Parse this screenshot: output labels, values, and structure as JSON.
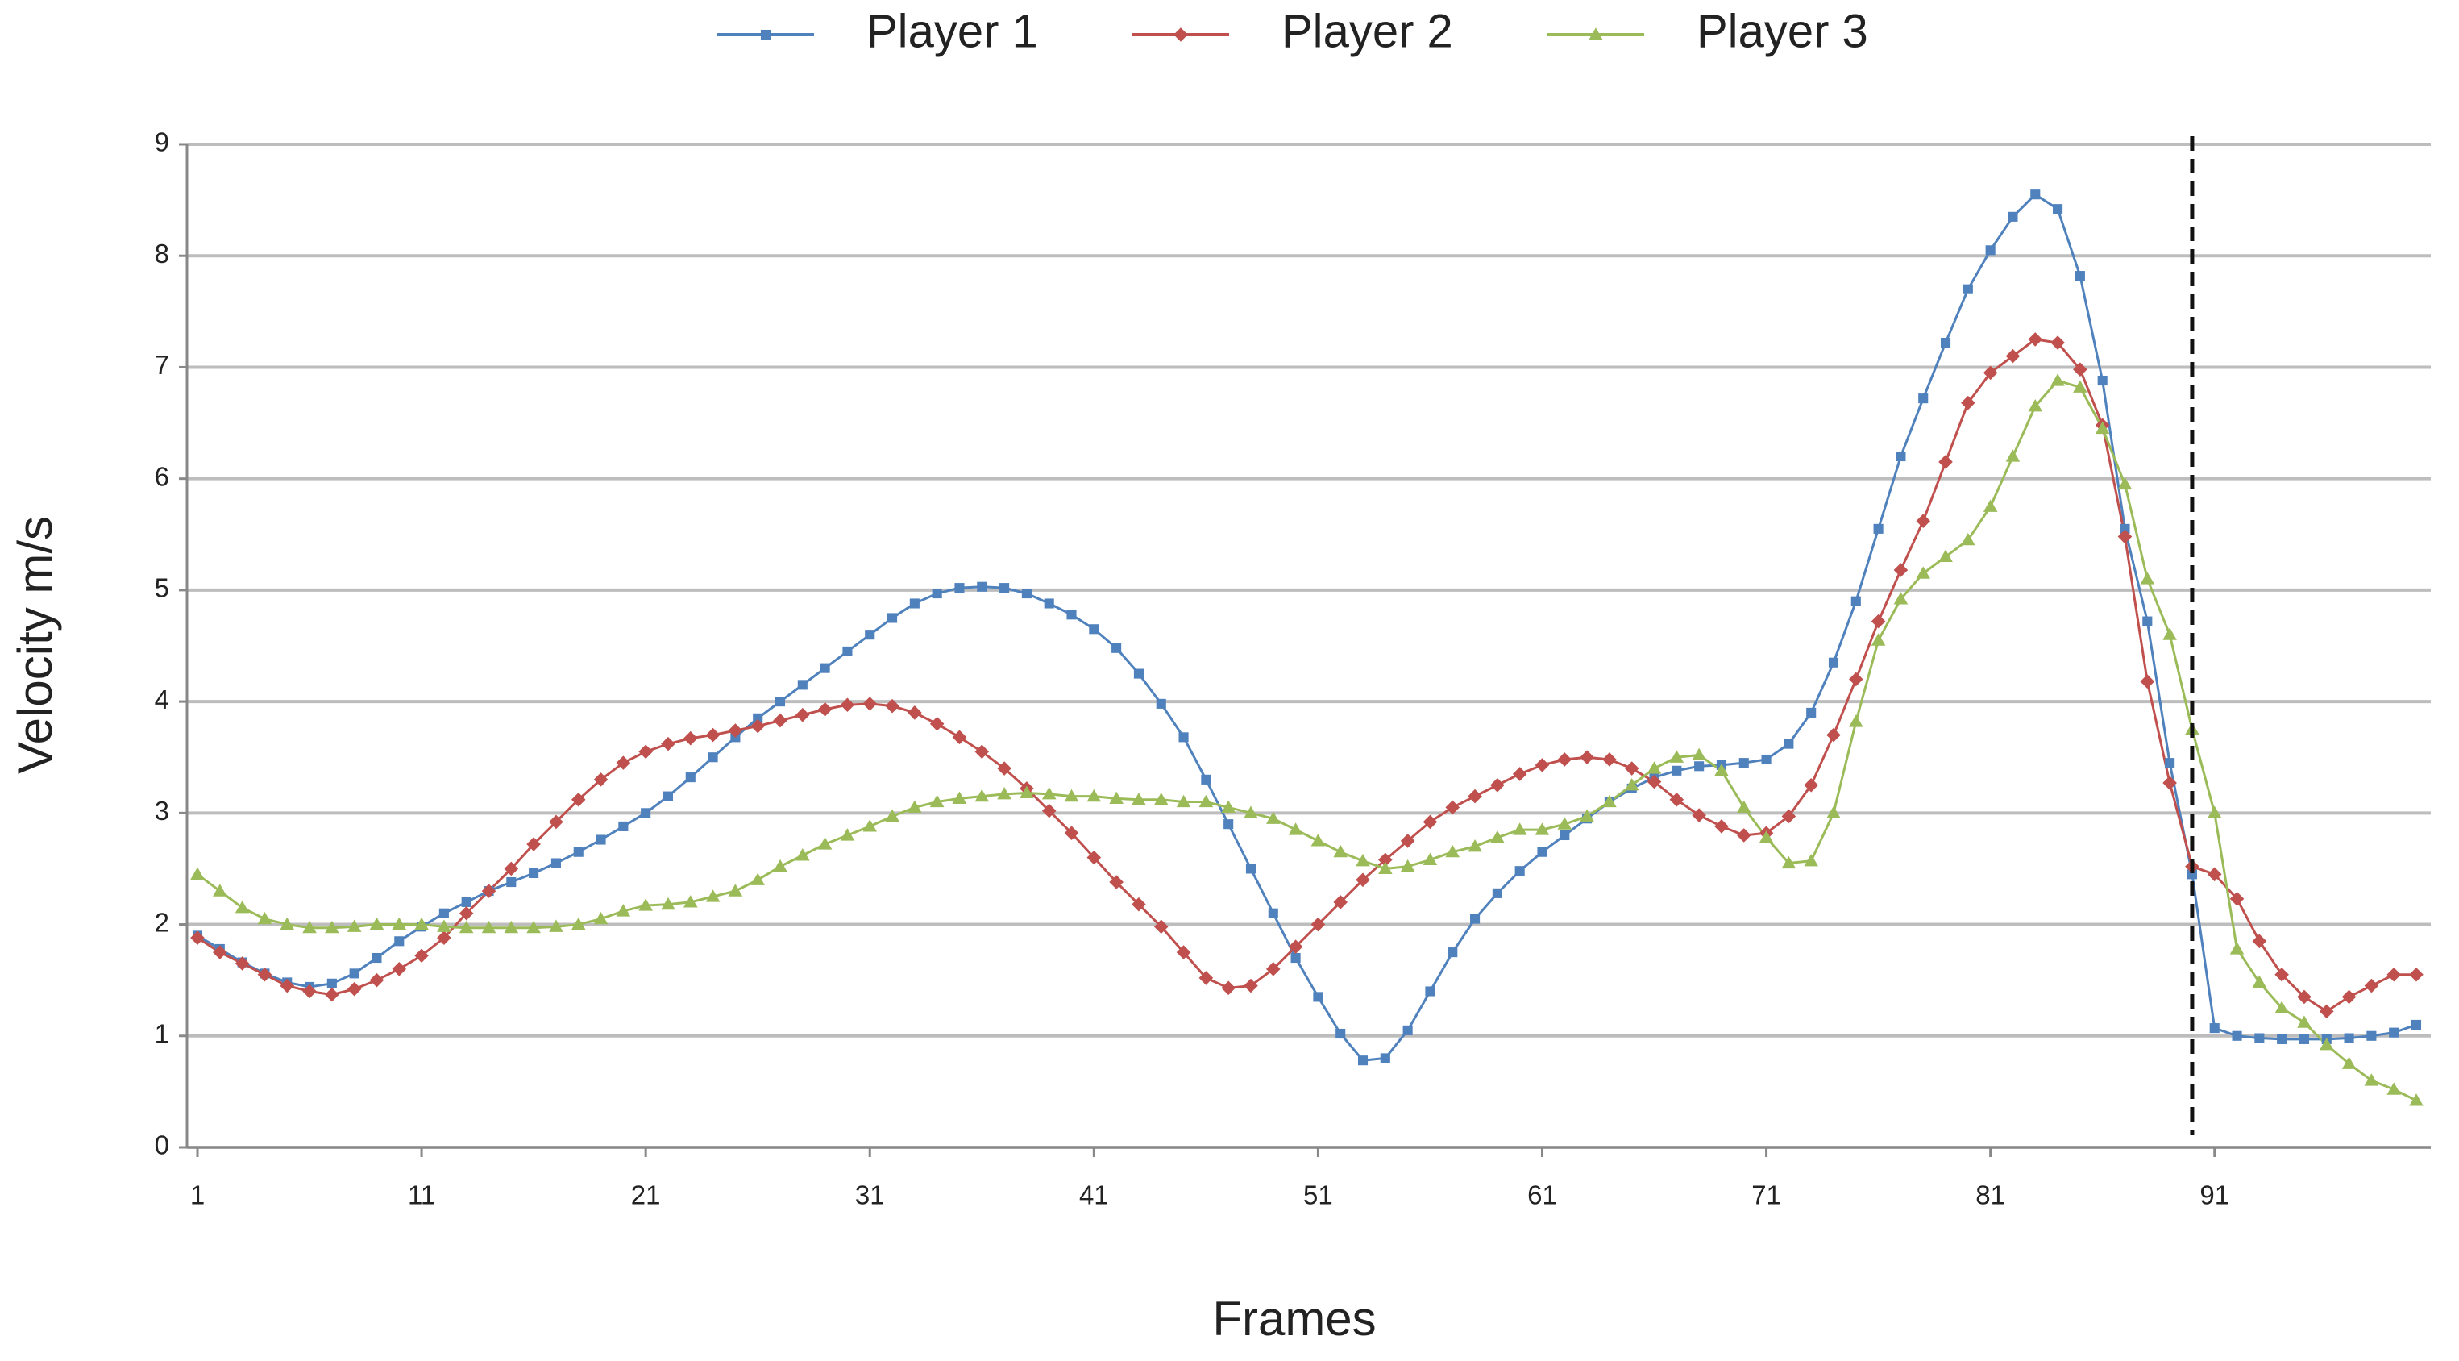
{
  "chart_data": {
    "type": "line",
    "xlabel": "Frames",
    "ylabel": "Velocity m/s",
    "x": [
      1,
      2,
      3,
      4,
      5,
      6,
      7,
      8,
      9,
      10,
      11,
      12,
      13,
      14,
      15,
      16,
      17,
      18,
      19,
      20,
      21,
      22,
      23,
      24,
      25,
      26,
      27,
      28,
      29,
      30,
      31,
      32,
      33,
      34,
      35,
      36,
      37,
      38,
      39,
      40,
      41,
      42,
      43,
      44,
      45,
      46,
      47,
      48,
      49,
      50,
      51,
      52,
      53,
      54,
      55,
      56,
      57,
      58,
      59,
      60,
      61,
      62,
      63,
      64,
      65,
      66,
      67,
      68,
      69,
      70,
      71,
      72,
      73,
      74,
      75,
      76,
      77,
      78,
      79,
      80,
      81,
      82,
      83,
      84,
      85,
      86,
      87,
      88,
      89,
      90,
      91,
      92,
      93,
      94,
      95,
      96,
      97,
      98,
      99,
      100
    ],
    "xlim": [
      1,
      100
    ],
    "xticks": [
      1,
      11,
      21,
      31,
      41,
      51,
      61,
      71,
      81,
      91
    ],
    "ylim": [
      0,
      9
    ],
    "yticks": [
      0,
      1,
      2,
      3,
      4,
      5,
      6,
      7,
      8,
      9
    ],
    "grid": true,
    "legend": "top",
    "reference_x": 90,
    "series": [
      {
        "name": "Player 1",
        "color": "#4f81bd",
        "marker": "square",
        "values": [
          1.9,
          1.78,
          1.66,
          1.56,
          1.48,
          1.44,
          1.47,
          1.56,
          1.7,
          1.85,
          1.98,
          2.1,
          2.2,
          2.3,
          2.38,
          2.46,
          2.55,
          2.65,
          2.76,
          2.88,
          3.0,
          3.15,
          3.32,
          3.5,
          3.68,
          3.85,
          4.0,
          4.15,
          4.3,
          4.45,
          4.6,
          4.75,
          4.88,
          4.97,
          5.02,
          5.03,
          5.02,
          4.97,
          4.88,
          4.78,
          4.65,
          4.48,
          4.25,
          3.98,
          3.68,
          3.3,
          2.9,
          2.5,
          2.1,
          1.7,
          1.35,
          1.02,
          0.78,
          0.8,
          1.05,
          1.4,
          1.75,
          2.05,
          2.28,
          2.48,
          2.65,
          2.8,
          2.95,
          3.1,
          3.22,
          3.32,
          3.38,
          3.42,
          3.43,
          3.45,
          3.48,
          3.62,
          3.9,
          4.35,
          4.9,
          5.55,
          6.2,
          6.72,
          7.22,
          7.7,
          8.05,
          8.35,
          8.55,
          8.42,
          7.82,
          6.88,
          5.55,
          4.72,
          3.45,
          2.45,
          1.07,
          1.0,
          0.98,
          0.97,
          0.97,
          0.97,
          0.98,
          1.0,
          1.03,
          1.1
        ]
      },
      {
        "name": "Player 2",
        "color": "#c0504d",
        "marker": "diamond",
        "values": [
          1.88,
          1.75,
          1.65,
          1.55,
          1.45,
          1.4,
          1.37,
          1.42,
          1.5,
          1.6,
          1.72,
          1.88,
          2.1,
          2.3,
          2.5,
          2.72,
          2.92,
          3.12,
          3.3,
          3.45,
          3.55,
          3.62,
          3.67,
          3.7,
          3.74,
          3.78,
          3.83,
          3.88,
          3.93,
          3.97,
          3.98,
          3.96,
          3.9,
          3.8,
          3.68,
          3.55,
          3.4,
          3.22,
          3.02,
          2.82,
          2.6,
          2.38,
          2.18,
          1.98,
          1.75,
          1.52,
          1.43,
          1.45,
          1.6,
          1.8,
          2.0,
          2.2,
          2.4,
          2.58,
          2.75,
          2.92,
          3.05,
          3.15,
          3.25,
          3.35,
          3.43,
          3.48,
          3.5,
          3.48,
          3.4,
          3.28,
          3.12,
          2.98,
          2.88,
          2.8,
          2.82,
          2.97,
          3.25,
          3.7,
          4.2,
          4.72,
          5.18,
          5.62,
          6.15,
          6.68,
          6.95,
          7.1,
          7.25,
          7.22,
          6.98,
          6.48,
          5.48,
          4.18,
          3.27,
          2.52,
          2.45,
          2.23,
          1.85,
          1.55,
          1.35,
          1.22,
          1.35,
          1.45,
          1.55,
          1.55
        ]
      },
      {
        "name": "Player 3",
        "color": "#9bbb59",
        "marker": "triangle",
        "values": [
          2.45,
          2.3,
          2.15,
          2.05,
          2.0,
          1.97,
          1.97,
          1.98,
          2.0,
          2.0,
          2.0,
          1.98,
          1.97,
          1.97,
          1.97,
          1.97,
          1.98,
          2.0,
          2.05,
          2.12,
          2.17,
          2.18,
          2.2,
          2.25,
          2.3,
          2.4,
          2.52,
          2.62,
          2.72,
          2.8,
          2.88,
          2.97,
          3.05,
          3.1,
          3.13,
          3.15,
          3.17,
          3.18,
          3.17,
          3.15,
          3.15,
          3.13,
          3.12,
          3.12,
          3.1,
          3.1,
          3.05,
          3.0,
          2.95,
          2.85,
          2.75,
          2.65,
          2.57,
          2.5,
          2.52,
          2.58,
          2.65,
          2.7,
          2.78,
          2.85,
          2.85,
          2.9,
          2.97,
          3.1,
          3.25,
          3.4,
          3.5,
          3.52,
          3.38,
          3.05,
          2.78,
          2.55,
          2.57,
          3.0,
          3.82,
          4.55,
          4.92,
          5.15,
          5.3,
          5.45,
          5.75,
          6.2,
          6.65,
          6.88,
          6.82,
          6.45,
          5.95,
          5.1,
          4.6,
          3.75,
          3.0,
          1.78,
          1.48,
          1.25,
          1.12,
          0.92,
          0.75,
          0.6,
          0.52,
          0.42
        ]
      }
    ]
  }
}
